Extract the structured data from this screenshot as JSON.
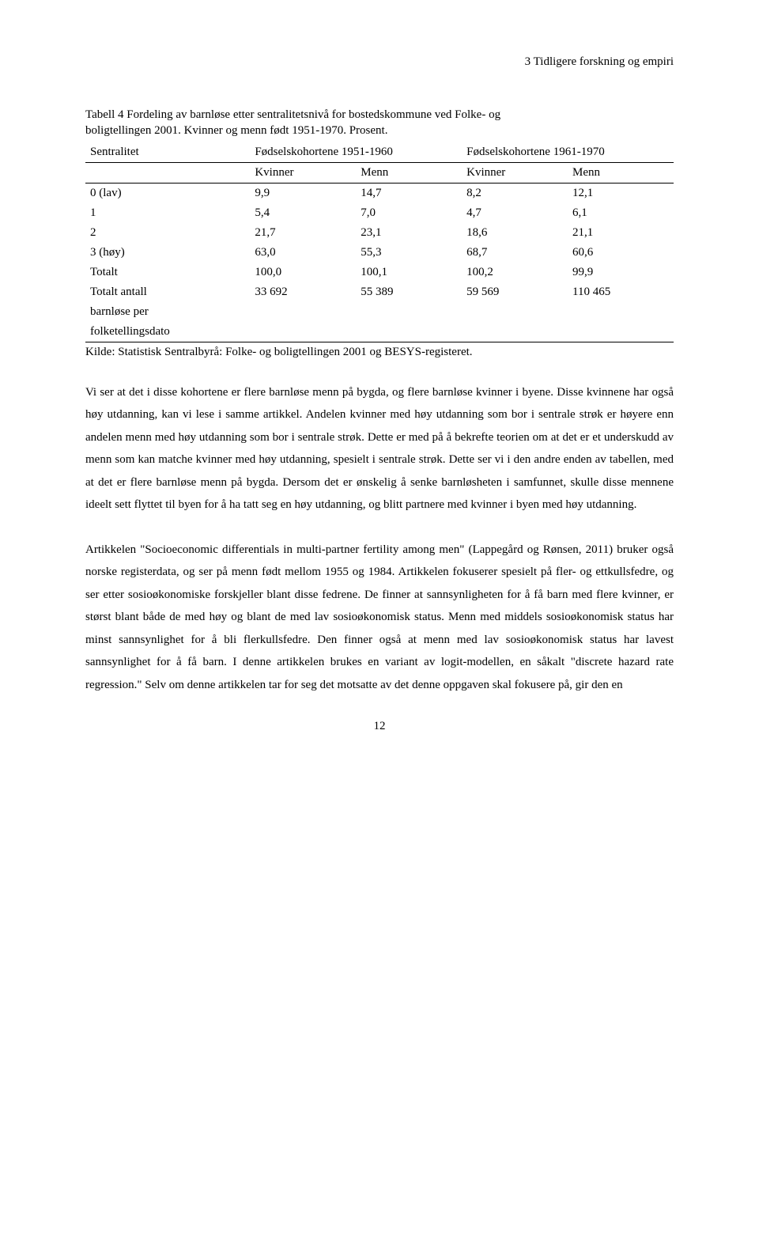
{
  "header": {
    "section": "3 Tidligere forskning og empiri"
  },
  "table": {
    "type": "table",
    "caption_line1": "Tabell 4 Fordeling av barnløse etter sentralitetsnivå for bostedskommune ved Folke- og",
    "caption_line2": "boligtellingen 2001. Kvinner og menn født 1951-1970. Prosent.",
    "header_row1": {
      "c0": "Sentralitet",
      "c1": "Fødselskohortene 1951-1960",
      "c2": "Fødselskohortene 1961-1970"
    },
    "header_row2": {
      "c0": "",
      "c1": "Kvinner",
      "c2": "Menn",
      "c3": "Kvinner",
      "c4": "Menn"
    },
    "rows": [
      {
        "label": "0 (lav)",
        "v1": "9,9",
        "v2": "14,7",
        "v3": "8,2",
        "v4": "12,1"
      },
      {
        "label": "1",
        "v1": "5,4",
        "v2": "7,0",
        "v3": "4,7",
        "v4": "6,1"
      },
      {
        "label": "2",
        "v1": "21,7",
        "v2": "23,1",
        "v3": "18,6",
        "v4": "21,1"
      },
      {
        "label": "3 (høy)",
        "v1": "63,0",
        "v2": "55,3",
        "v3": "68,7",
        "v4": "60,6"
      },
      {
        "label": "Totalt",
        "v1": "100,0",
        "v2": "100,1",
        "v3": "100,2",
        "v4": "99,9"
      }
    ],
    "totals_row": {
      "label_line1": "Totalt antall",
      "label_line2": "barnløse per",
      "label_line3": "folketellingsdato",
      "v1": "33 692",
      "v2": "55 389",
      "v3": "59 569",
      "v4": "110 465"
    },
    "source": "Kilde: Statistisk Sentralbyrå: Folke- og boligtellingen 2001 og BESYS-registeret."
  },
  "paragraphs": {
    "p1": "Vi ser at det i disse kohortene er flere barnløse menn på bygda, og flere barnløse kvinner i byene. Disse kvinnene har også høy utdanning, kan vi lese i samme artikkel. Andelen kvinner med høy utdanning som bor i sentrale strøk er høyere enn andelen menn med høy utdanning som bor i sentrale strøk. Dette er med på å bekrefte teorien om at det er et underskudd av menn som kan matche kvinner med høy utdanning, spesielt i sentrale strøk. Dette ser vi i den andre enden av tabellen, med at det er flere barnløse menn på bygda. Dersom det er ønskelig å senke barnløsheten i samfunnet, skulle disse mennene ideelt sett flyttet til byen for å ha tatt seg en høy utdanning, og blitt partnere med kvinner i byen med høy utdanning.",
    "p2": "Artikkelen \"Socioeconomic differentials in multi-partner fertility among men\" (Lappegård og Rønsen, 2011) bruker også norske registerdata, og ser på menn født mellom 1955 og 1984. Artikkelen fokuserer spesielt på fler- og ettkullsfedre, og ser etter sosioøkonomiske forskjeller blant disse fedrene. De finner at sannsynligheten for å få barn med flere kvinner, er størst blant både de med høy og blant de med lav sosioøkonomisk status. Menn med middels sosioøkonomisk status har minst sannsynlighet for å bli flerkullsfedre. Den finner også at menn med lav sosioøkonomisk status har lavest sannsynlighet for å få barn. I denne artikkelen brukes en variant av logit-modellen, en såkalt \"discrete hazard rate regression.\" Selv om denne artikkelen tar for seg det motsatte av det denne oppgaven skal fokusere på, gir den en"
  },
  "page_number": "12"
}
